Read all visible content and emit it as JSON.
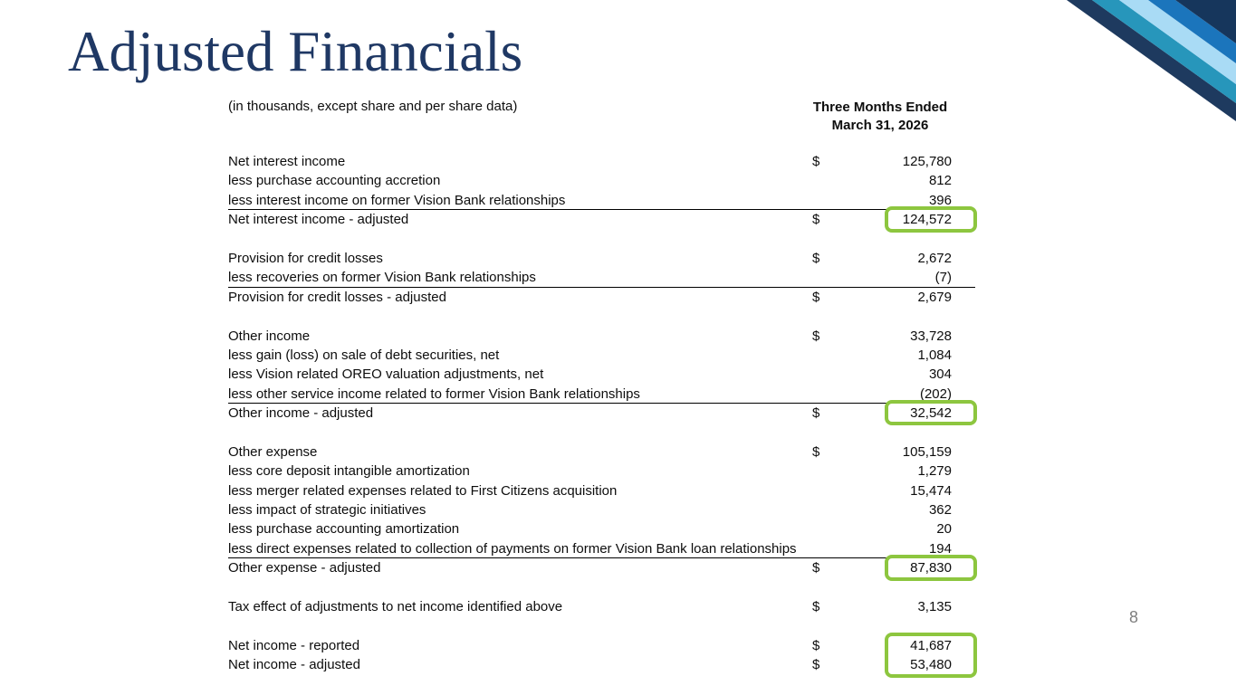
{
  "slide": {
    "title": "Adjusted Financials",
    "page_number": "8"
  },
  "colors": {
    "title_navy": "#1f3864",
    "highlight_green": "#8dc63f",
    "stripe_navy": "#1e3a5f",
    "stripe_teal": "#2796bb",
    "stripe_light_blue": "#a9dbf5",
    "stripe_royal": "#1b75bc",
    "stripe_corner": "#16365c"
  },
  "table": {
    "caption": "(in thousands, except share and per share data)",
    "period": {
      "line1": "Three Months Ended",
      "line2": "March 31, 2026"
    },
    "rows": [
      {
        "label": "Net interest income",
        "dollar": "$",
        "value": "125,780"
      },
      {
        "label": "less purchase accounting accretion",
        "value": "812"
      },
      {
        "label": "less interest income on former Vision Bank relationships",
        "value": "396",
        "rule_below": true
      },
      {
        "label": "Net interest income - adjusted",
        "dollar": "$",
        "value": "124,572",
        "highlight": "single"
      },
      {
        "type": "spacer"
      },
      {
        "label": "Provision for credit losses",
        "dollar": "$",
        "value": "2,672"
      },
      {
        "label": "less recoveries on former Vision Bank relationships",
        "value": "(7)",
        "rule_below": true
      },
      {
        "label": "Provision for credit losses - adjusted",
        "dollar": "$",
        "value": "2,679"
      },
      {
        "type": "spacer"
      },
      {
        "label": "Other income",
        "dollar": "$",
        "value": "33,728"
      },
      {
        "label": "less gain (loss) on sale of debt securities, net",
        "value": "1,084"
      },
      {
        "label": "less Vision related OREO valuation adjustments, net",
        "value": "304"
      },
      {
        "label": "less other service income related to former Vision Bank relationships",
        "value": "(202)",
        "rule_below": true
      },
      {
        "label": "Other income - adjusted",
        "dollar": "$",
        "value": "32,542",
        "highlight": "single"
      },
      {
        "type": "spacer"
      },
      {
        "label": "Other expense",
        "dollar": "$",
        "value": "105,159"
      },
      {
        "label": "less core deposit intangible amortization",
        "value": "1,279"
      },
      {
        "label": "less merger related expenses related to First Citizens acquisition",
        "value": "15,474"
      },
      {
        "label": "less impact of strategic initiatives",
        "value": "362"
      },
      {
        "label": "less purchase accounting amortization",
        "value": "20"
      },
      {
        "label": "less direct expenses related to collection of payments on former Vision Bank loan relationships",
        "value": "194",
        "rule_below": true
      },
      {
        "label": "Other expense - adjusted",
        "dollar": "$",
        "value": "87,830",
        "highlight": "single"
      },
      {
        "type": "spacer"
      },
      {
        "label": "Tax effect of adjustments to net income identified above",
        "dollar": "$",
        "value": "3,135"
      },
      {
        "type": "spacer"
      },
      {
        "label": "Net income - reported",
        "dollar": "$",
        "value": "41,687",
        "highlight": "top"
      },
      {
        "label": "Net income - adjusted",
        "dollar": "$",
        "value": "53,480",
        "highlight": "bottom"
      }
    ]
  }
}
